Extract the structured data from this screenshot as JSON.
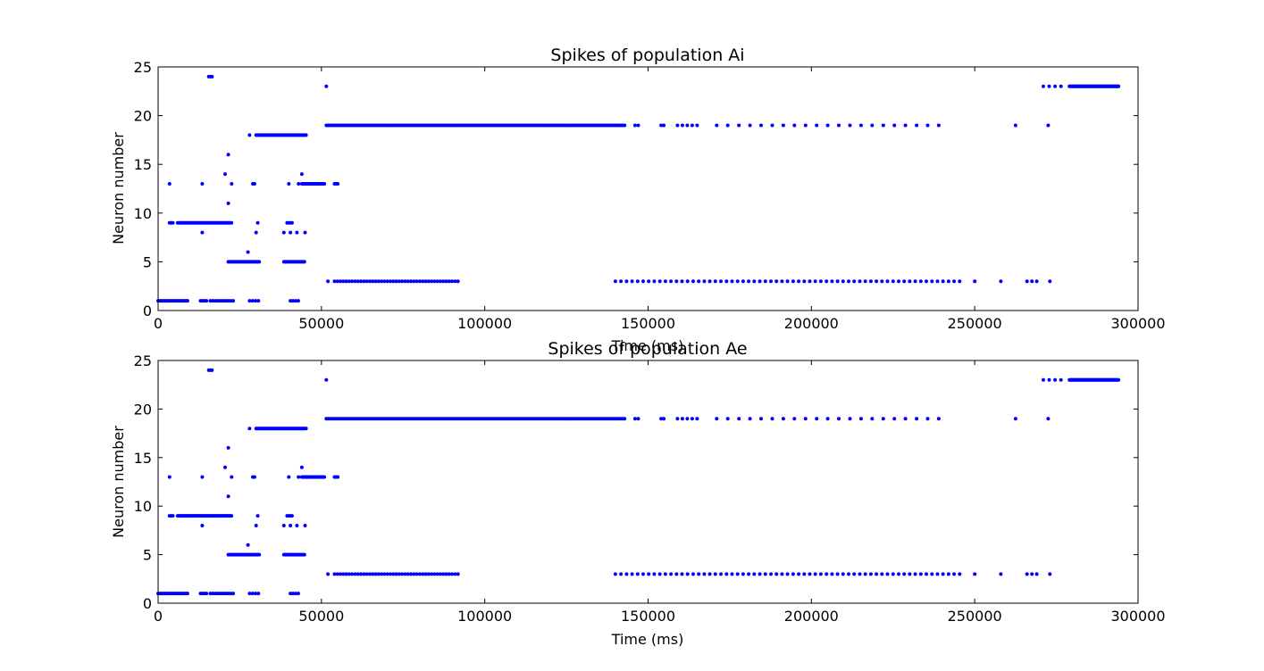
{
  "figure": {
    "background": "#ffffff",
    "marker_color": "#0000ff"
  },
  "chart_data": [
    {
      "type": "scatter",
      "title": "Spikes of population Ai",
      "xlabel": "Time (ms)",
      "ylabel": "Neuron number",
      "xlim": [
        0,
        300000
      ],
      "ylim": [
        0,
        25
      ],
      "xticks": [
        0,
        50000,
        100000,
        150000,
        200000,
        250000,
        300000
      ],
      "yticks": [
        0,
        5,
        10,
        15,
        20,
        25
      ],
      "grid": false,
      "legend": "none",
      "series": [
        {
          "marker": "point",
          "color": "#0000ff",
          "segments": [
            {
              "y": 1,
              "from": 0,
              "to": 9000,
              "step": 500
            },
            {
              "y": 1,
              "from": 13000,
              "to": 15000,
              "step": 600
            },
            {
              "y": 1,
              "from": 16000,
              "to": 23000,
              "step": 700
            },
            {
              "y": 1,
              "from": 28000,
              "to": 31000,
              "step": 900
            },
            {
              "y": 1,
              "from": 40500,
              "to": 43000,
              "step": 800
            },
            {
              "y": 3,
              "from": 52000,
              "to": 52000,
              "step": 1
            },
            {
              "y": 3,
              "from": 54000,
              "to": 92000,
              "step": 900
            },
            {
              "y": 3,
              "from": 140000,
              "to": 246000,
              "step": 1700
            },
            {
              "y": 3,
              "from": 250000,
              "to": 250000,
              "step": 1
            },
            {
              "y": 3,
              "from": 258000,
              "to": 258000,
              "step": 1
            },
            {
              "y": 3,
              "from": 266000,
              "to": 270000,
              "step": 1500
            },
            {
              "y": 3,
              "from": 273000,
              "to": 273000,
              "step": 1
            },
            {
              "y": 5,
              "from": 21500,
              "to": 31000,
              "step": 350
            },
            {
              "y": 5,
              "from": 38500,
              "to": 45000,
              "step": 350
            },
            {
              "y": 9,
              "from": 3500,
              "to": 4500,
              "step": 500
            },
            {
              "y": 9,
              "from": 6000,
              "to": 22500,
              "step": 350
            },
            {
              "y": 9,
              "from": 39500,
              "to": 41000,
              "step": 500
            },
            {
              "y": 13,
              "from": 44000,
              "to": 51000,
              "step": 300
            },
            {
              "y": 13,
              "from": 54000,
              "to": 55000,
              "step": 500
            },
            {
              "y": 18,
              "from": 30000,
              "to": 45500,
              "step": 300
            },
            {
              "y": 19,
              "from": 51500,
              "to": 143000,
              "step": 550
            },
            {
              "y": 19,
              "from": 146000,
              "to": 146000,
              "step": 1
            },
            {
              "y": 19,
              "from": 147000,
              "to": 147000,
              "step": 1
            },
            {
              "y": 19,
              "from": 154000,
              "to": 155000,
              "step": 800
            },
            {
              "y": 19,
              "from": 159000,
              "to": 165000,
              "step": 1500
            },
            {
              "y": 19,
              "from": 171000,
              "to": 242000,
              "step": 3400
            },
            {
              "y": 19,
              "from": 262500,
              "to": 262500,
              "step": 1
            },
            {
              "y": 19,
              "from": 272500,
              "to": 272500,
              "step": 1
            },
            {
              "y": 23,
              "from": 271000,
              "to": 278000,
              "step": 1800
            },
            {
              "y": 23,
              "from": 279000,
              "to": 294000,
              "step": 200
            }
          ],
          "points": [
            [
              3500,
              13
            ],
            [
              13500,
              13
            ],
            [
              13500,
              8
            ],
            [
              15500,
              24
            ],
            [
              16000,
              24
            ],
            [
              16500,
              24
            ],
            [
              20500,
              14
            ],
            [
              21500,
              16
            ],
            [
              21500,
              11
            ],
            [
              22500,
              13
            ],
            [
              27500,
              6
            ],
            [
              28000,
              18
            ],
            [
              29000,
              13
            ],
            [
              29500,
              13
            ],
            [
              30000,
              8
            ],
            [
              30500,
              9
            ],
            [
              38500,
              8
            ],
            [
              40000,
              13
            ],
            [
              40500,
              8
            ],
            [
              42500,
              8
            ],
            [
              43000,
              13
            ],
            [
              44000,
              14
            ],
            [
              45000,
              8
            ],
            [
              51500,
              23
            ]
          ]
        }
      ]
    },
    {
      "type": "scatter",
      "title": "Spikes of population Ae",
      "xlabel": "Time (ms)",
      "ylabel": "Neuron number",
      "xlim": [
        0,
        300000
      ],
      "ylim": [
        0,
        25
      ],
      "xticks": [
        0,
        50000,
        100000,
        150000,
        200000,
        250000,
        300000
      ],
      "yticks": [
        0,
        5,
        10,
        15,
        20,
        25
      ],
      "grid": false,
      "legend": "none",
      "series": [
        {
          "marker": "point",
          "color": "#0000ff",
          "segments": [
            {
              "y": 1,
              "from": 0,
              "to": 9000,
              "step": 500
            },
            {
              "y": 1,
              "from": 13000,
              "to": 15000,
              "step": 600
            },
            {
              "y": 1,
              "from": 16000,
              "to": 23000,
              "step": 700
            },
            {
              "y": 1,
              "from": 28000,
              "to": 31000,
              "step": 900
            },
            {
              "y": 1,
              "from": 40500,
              "to": 43000,
              "step": 800
            },
            {
              "y": 3,
              "from": 52000,
              "to": 52000,
              "step": 1
            },
            {
              "y": 3,
              "from": 54000,
              "to": 92000,
              "step": 900
            },
            {
              "y": 3,
              "from": 140000,
              "to": 246000,
              "step": 1700
            },
            {
              "y": 3,
              "from": 250000,
              "to": 250000,
              "step": 1
            },
            {
              "y": 3,
              "from": 258000,
              "to": 258000,
              "step": 1
            },
            {
              "y": 3,
              "from": 266000,
              "to": 270000,
              "step": 1500
            },
            {
              "y": 3,
              "from": 273000,
              "to": 273000,
              "step": 1
            },
            {
              "y": 5,
              "from": 21500,
              "to": 31000,
              "step": 350
            },
            {
              "y": 5,
              "from": 38500,
              "to": 45000,
              "step": 350
            },
            {
              "y": 9,
              "from": 3500,
              "to": 4500,
              "step": 500
            },
            {
              "y": 9,
              "from": 6000,
              "to": 22500,
              "step": 350
            },
            {
              "y": 9,
              "from": 39500,
              "to": 41000,
              "step": 500
            },
            {
              "y": 13,
              "from": 44000,
              "to": 51000,
              "step": 300
            },
            {
              "y": 13,
              "from": 54000,
              "to": 55000,
              "step": 500
            },
            {
              "y": 18,
              "from": 30000,
              "to": 45500,
              "step": 300
            },
            {
              "y": 19,
              "from": 51500,
              "to": 143000,
              "step": 550
            },
            {
              "y": 19,
              "from": 146000,
              "to": 146000,
              "step": 1
            },
            {
              "y": 19,
              "from": 147000,
              "to": 147000,
              "step": 1
            },
            {
              "y": 19,
              "from": 154000,
              "to": 155000,
              "step": 800
            },
            {
              "y": 19,
              "from": 159000,
              "to": 165000,
              "step": 1500
            },
            {
              "y": 19,
              "from": 171000,
              "to": 242000,
              "step": 3400
            },
            {
              "y": 19,
              "from": 262500,
              "to": 262500,
              "step": 1
            },
            {
              "y": 19,
              "from": 272500,
              "to": 272500,
              "step": 1
            },
            {
              "y": 23,
              "from": 271000,
              "to": 278000,
              "step": 1800
            },
            {
              "y": 23,
              "from": 279000,
              "to": 294000,
              "step": 200
            }
          ],
          "points": [
            [
              3500,
              13
            ],
            [
              13500,
              13
            ],
            [
              13500,
              8
            ],
            [
              15500,
              24
            ],
            [
              16000,
              24
            ],
            [
              16500,
              24
            ],
            [
              20500,
              14
            ],
            [
              21500,
              16
            ],
            [
              21500,
              11
            ],
            [
              22500,
              13
            ],
            [
              27500,
              6
            ],
            [
              28000,
              18
            ],
            [
              29000,
              13
            ],
            [
              29500,
              13
            ],
            [
              30000,
              8
            ],
            [
              30500,
              9
            ],
            [
              38500,
              8
            ],
            [
              40000,
              13
            ],
            [
              40500,
              8
            ],
            [
              42500,
              8
            ],
            [
              43000,
              13
            ],
            [
              44000,
              14
            ],
            [
              45000,
              8
            ],
            [
              51500,
              23
            ]
          ]
        }
      ]
    }
  ]
}
